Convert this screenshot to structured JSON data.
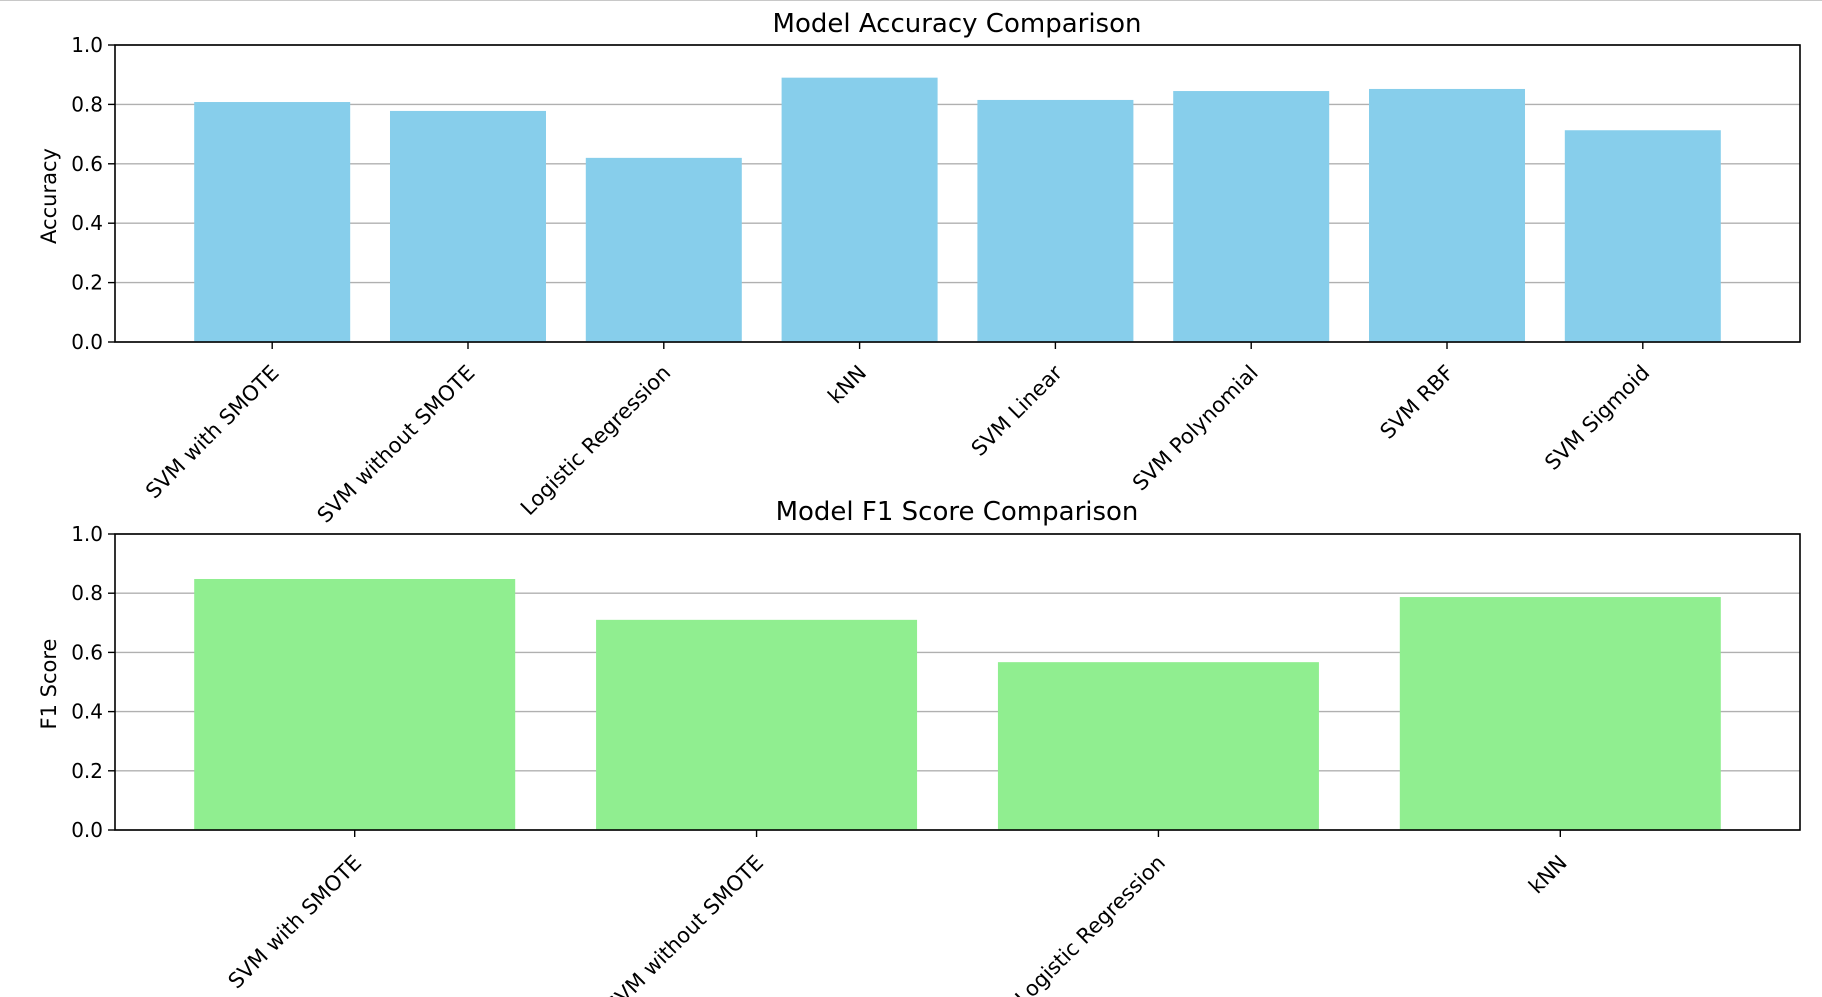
{
  "chart_data": [
    {
      "type": "bar",
      "title": "Model Accuracy Comparison",
      "xlabel": "",
      "ylabel": "Accuracy",
      "ylim": [
        0,
        1.0
      ],
      "yticks": [
        "0.0",
        "0.2",
        "0.4",
        "0.6",
        "0.8",
        "1.0"
      ],
      "grid": "horizontal",
      "bar_color": "#87CEEB",
      "categories": [
        "SVM with SMOTE",
        "SVM without SMOTE",
        "Logistic Regression",
        "kNN",
        "SVM Linear",
        "SVM Polynomial",
        "SVM RBF",
        "SVM Sigmoid"
      ],
      "values": [
        0.808,
        0.778,
        0.62,
        0.89,
        0.815,
        0.845,
        0.852,
        0.713
      ]
    },
    {
      "type": "bar",
      "title": "Model F1 Score Comparison",
      "xlabel": "",
      "ylabel": "F1 Score",
      "ylim": [
        0,
        1.0
      ],
      "yticks": [
        "0.0",
        "0.2",
        "0.4",
        "0.6",
        "0.8",
        "1.0"
      ],
      "grid": "horizontal",
      "bar_color": "#90EE90",
      "categories": [
        "SVM with SMOTE",
        "SVM without SMOTE",
        "Logistic Regression",
        "kNN"
      ],
      "values": [
        0.848,
        0.71,
        0.567,
        0.787
      ]
    }
  ]
}
